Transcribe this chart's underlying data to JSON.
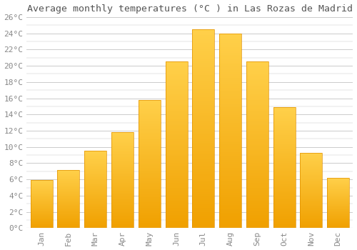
{
  "months": [
    "Jan",
    "Feb",
    "Mar",
    "Apr",
    "May",
    "Jun",
    "Jul",
    "Aug",
    "Sep",
    "Oct",
    "Nov",
    "Dec"
  ],
  "values": [
    5.9,
    7.2,
    9.5,
    11.8,
    15.8,
    20.5,
    24.5,
    24.0,
    20.5,
    14.9,
    9.3,
    6.2
  ],
  "bar_color_top": "#FFD04A",
  "bar_color_bottom": "#F0A000",
  "bar_edge_color": "#E09000",
  "title": "Average monthly temperatures (°C ) in Las Rozas de Madrid",
  "ylim": [
    0,
    26
  ],
  "ytick_step": 2,
  "background_color": "#FFFFFF",
  "grid_color": "#CCCCCC",
  "title_fontsize": 9.5,
  "tick_fontsize": 8,
  "label_color": "#888888",
  "title_color": "#555555",
  "font_family": "monospace",
  "bar_width": 0.82,
  "figsize": [
    5.0,
    3.5
  ],
  "dpi": 100
}
